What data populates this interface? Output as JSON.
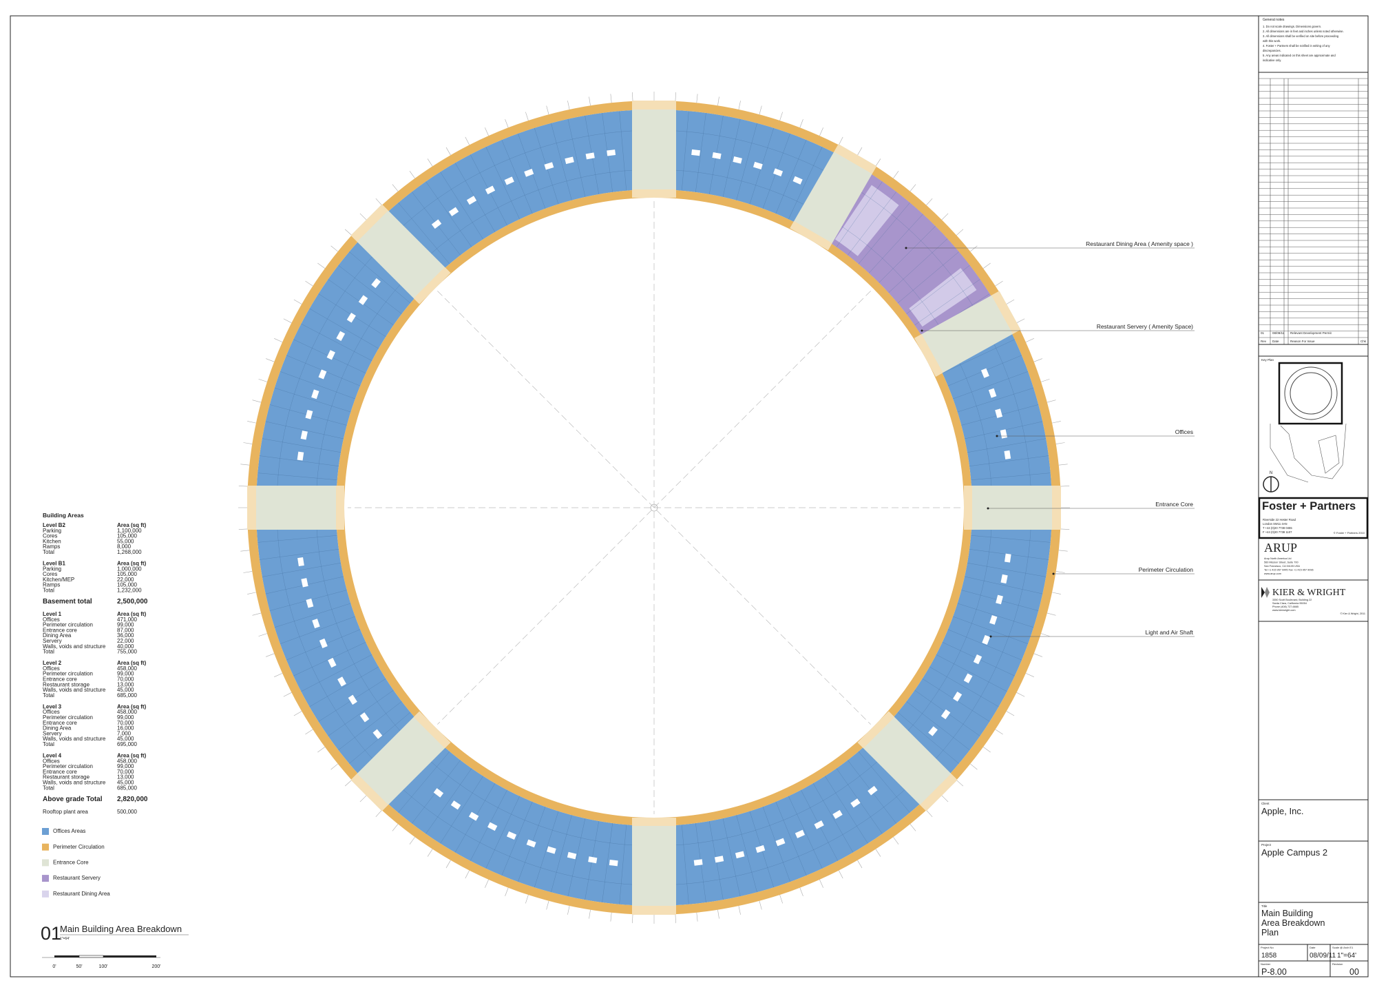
{
  "annotations": [
    "Restaurant Dining Area ( Amenity space )",
    "Restaurant Servery ( Amenity Space)",
    "Offices",
    "Entrance Core",
    "Perimeter Circulation",
    "Light and Air Shaft"
  ],
  "area_table": {
    "title": "Building Areas",
    "basement_levels": [
      {
        "level": "Level B2",
        "unit": "Area (sq ft)",
        "rows": [
          [
            "Parking",
            "1,100,000"
          ],
          [
            "Cores",
            "105,000"
          ],
          [
            "Kitchen",
            "55,000"
          ],
          [
            "Ramps",
            "8,000"
          ],
          [
            "Total",
            "1,268,000"
          ]
        ]
      },
      {
        "level": "Level B1",
        "unit": "Area (sq ft)",
        "rows": [
          [
            "Parking",
            "1,000,000"
          ],
          [
            "Cores",
            "105,000"
          ],
          [
            "Kitchen/MEP",
            "22,000"
          ],
          [
            "Ramps",
            "105,000"
          ],
          [
            "Total",
            "1,232,000"
          ]
        ]
      }
    ],
    "basement_total": {
      "label": "Basement total",
      "value": "2,500,000"
    },
    "above_grade_levels": [
      {
        "level": "Level 1",
        "unit": "Area (sq ft)",
        "rows": [
          [
            "Offices",
            "471,000"
          ],
          [
            "Perimeter circulation",
            "99,000"
          ],
          [
            "Entrance core",
            "87,000"
          ],
          [
            "Dining Area",
            "36,000"
          ],
          [
            "Servery",
            "22,000"
          ],
          [
            "Walls, voids and structure",
            "40,000"
          ],
          [
            "Total",
            "755,000"
          ]
        ]
      },
      {
        "level": "Level 2",
        "unit": "Area (sq ft)",
        "rows": [
          [
            "Offices",
            "458,000"
          ],
          [
            "Perimeter circulation",
            "99,000"
          ],
          [
            "Entrance core",
            "70,000"
          ],
          [
            "Restaurant storage",
            "13,000"
          ],
          [
            "Walls, voids and structure",
            "45,000"
          ],
          [
            "Total",
            "685,000"
          ]
        ]
      },
      {
        "level": "Level 3",
        "unit": "Area (sq ft)",
        "rows": [
          [
            "Offices",
            "458,000"
          ],
          [
            "Perimeter circulation",
            "99,000"
          ],
          [
            "Entrance core",
            "70,000"
          ],
          [
            "Dining Area",
            "16,000"
          ],
          [
            "Servery",
            "7,000"
          ],
          [
            "Walls, voids and structure",
            "45,000"
          ],
          [
            "Total",
            "695,000"
          ]
        ]
      },
      {
        "level": "Level 4",
        "unit": "Area (sq ft)",
        "rows": [
          [
            "Offices",
            "458,000"
          ],
          [
            "Perimeter circulation",
            "99,000"
          ],
          [
            "Entrance core",
            "70,000"
          ],
          [
            "Restaurant storage",
            "13,000"
          ],
          [
            "Walls, voids and structure",
            "45,000"
          ],
          [
            "Total",
            "685,000"
          ]
        ]
      }
    ],
    "above_grade_total": {
      "label": "Above grade Total",
      "value": "2,820,000"
    },
    "rooftop": {
      "label": "Rooftop plant area",
      "value": "500,000"
    }
  },
  "legend": [
    {
      "label": "Offices Areas",
      "color": "#6c9fd3"
    },
    {
      "label": "Perimeter Circulation",
      "color": "#e8b45e"
    },
    {
      "label": "Entrance Core",
      "color": "#dfe4d5"
    },
    {
      "label": "Restaurant Servery",
      "color": "#a895cc"
    },
    {
      "label": "Restaurant Dining Area",
      "color": "#d9d4ec"
    }
  ],
  "drawing_title": {
    "number": "01",
    "name": "Main Building Area Breakdown",
    "scale": "1\"=64'"
  },
  "scale_bar": [
    "0'",
    "50'",
    "100'",
    "200'"
  ],
  "title_block": {
    "general_notes": {
      "title": "General notes",
      "lines": [
        "1. Do not scale drawings. Dimensions govern.",
        "2. All dimensions are in feet and inches unless noted otherwise.",
        "3. All dimensions shall be verified on site before proceeding",
        "with this work.",
        "4. Foster + Partners shall be notified in writing of any",
        "discrepancies.",
        "5. Any areas indicated on this sheet are approximate and",
        "indicative only."
      ]
    },
    "revision": {
      "row": [
        "01",
        "08/09/11",
        "Relevant Development Permit"
      ],
      "header": [
        "Rev",
        "Date",
        "Reason For Issue",
        "Chk"
      ]
    },
    "key_plan": "Key Plan",
    "north": "N",
    "foster": {
      "name": "Foster + Partners",
      "lines": [
        "Riverside 22 Hester Road",
        "London SW11 4AN",
        "T +44 (0)20 7738 0455",
        "F +44 (0)20 7738 1107"
      ],
      "copyright": "© Foster + Partners 2010"
    },
    "arup": {
      "name": "ARUP",
      "lines": [
        "Arup North America Ltd",
        "560 Mission Street, Suite 700",
        "San Francisco, CA 94105 USA",
        "Tel +1 415 957 9445  Fax +1 415 957 9096",
        "www.arup.com"
      ]
    },
    "kier": {
      "name": "KIER & WRIGHT",
      "lines": [
        "3350 Scott Boulevard, Building 22",
        "Santa Clara, California 95054",
        "Phone (408) 727-6665",
        "www.kierwright.com"
      ],
      "copyright": "© Kier & Wright, 2011"
    },
    "client": {
      "label": "Client",
      "value": "Apple, Inc."
    },
    "project": {
      "label": "Project",
      "value": "Apple Campus 2"
    },
    "title": {
      "label": "Title",
      "lines": [
        "Main Building",
        "Area Breakdown",
        "Plan"
      ]
    },
    "project_no": {
      "label": "Project No",
      "value": "1858"
    },
    "date": {
      "label": "Date",
      "value": "08/09/11"
    },
    "scale": {
      "label": "Scale @ Arch E1",
      "value": "1\"=64'"
    },
    "number": {
      "label": "Number",
      "value": "P-8.00"
    },
    "rev": {
      "label": "Revision",
      "value": "00"
    }
  }
}
